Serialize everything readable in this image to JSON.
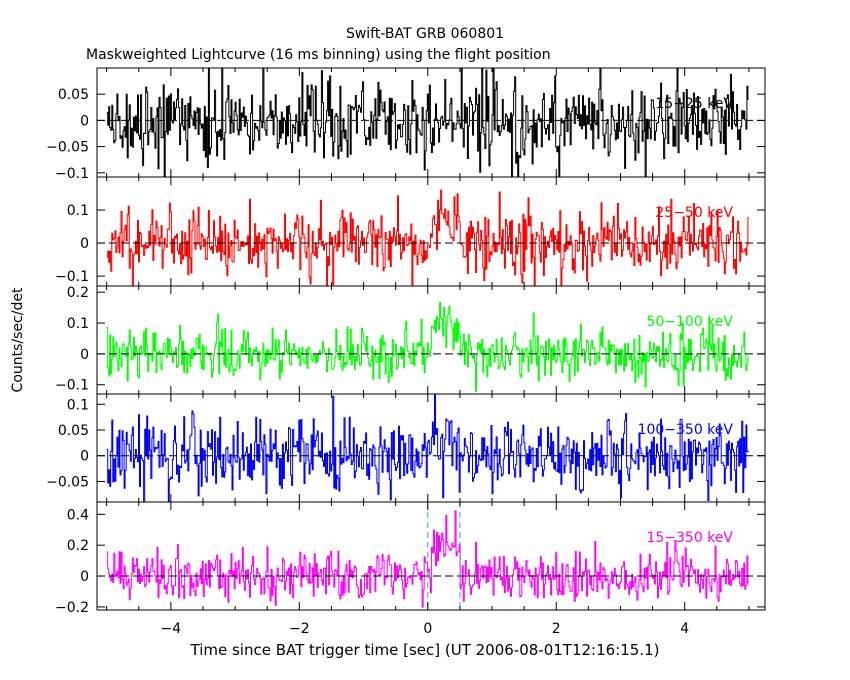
{
  "chart_data": {
    "type": "line",
    "title": "Swift-BAT GRB 060801",
    "subtitle": "Maskweighted Lightcurve (16 ms binning) using the flight position",
    "xlabel": "Time since BAT trigger time [sec] (UT 2006-08-01T12:16:15.1)",
    "ylabel": "Counts/sec/det",
    "xlim": [
      -5.15,
      5.25
    ],
    "x_ticks": [
      -4,
      -2,
      0,
      2,
      4
    ],
    "x_tick_labels": [
      "−4",
      "−2",
      "0",
      "2",
      "4"
    ],
    "bin_width_sec": 0.016,
    "vertical_markers": [
      0.0,
      0.5
    ],
    "panels": [
      {
        "name": "15-25 keV",
        "label": "15−25 keV",
        "color": "#000000",
        "ylim": [
          -0.108,
          0.1
        ],
        "y_ticks": [
          -0.1,
          -0.05,
          0,
          0.05
        ],
        "y_tick_labels": [
          "−0.1",
          "−0.05",
          "0",
          "0.05"
        ],
        "baseline_noise": 0.04,
        "peak": 0.0,
        "peak_time": [
          0.05,
          0.5
        ]
      },
      {
        "name": "25-50 keV",
        "label": "25−50 keV",
        "color": "#ff0000",
        "ylim": [
          -0.13,
          0.2
        ],
        "y_ticks": [
          -0.1,
          0,
          0.1
        ],
        "y_tick_labels": [
          "−0.1",
          "0",
          "0.1"
        ],
        "baseline_noise": 0.05,
        "peak": 0.08,
        "peak_time": [
          0.05,
          0.5
        ]
      },
      {
        "name": "50-100 keV",
        "label": "50−100 keV",
        "color": "#00ff00",
        "ylim": [
          -0.13,
          0.22
        ],
        "y_ticks": [
          -0.1,
          0,
          0.1,
          0.2
        ],
        "y_tick_labels": [
          "−0.1",
          "0",
          "0.1",
          "0.2"
        ],
        "baseline_noise": 0.04,
        "peak": 0.1,
        "peak_time": [
          0.05,
          0.5
        ]
      },
      {
        "name": "100-350 keV",
        "label": "100−350 keV",
        "color": "#0000ff",
        "ylim": [
          -0.09,
          0.12
        ],
        "y_ticks": [
          -0.05,
          0,
          0.05,
          0.1
        ],
        "y_tick_labels": [
          "−0.05",
          "0",
          "0.05",
          "0.1"
        ],
        "baseline_noise": 0.035,
        "peak": 0.04,
        "peak_time": [
          0.05,
          0.5
        ]
      },
      {
        "name": "15-350 keV",
        "label": "15−350 keV",
        "color": "#ff00ff",
        "ylim": [
          -0.22,
          0.48
        ],
        "y_ticks": [
          -0.2,
          0,
          0.2,
          0.4
        ],
        "y_tick_labels": [
          "−0.2",
          "0",
          "0.2",
          "0.4"
        ],
        "baseline_noise": 0.08,
        "peak": 0.25,
        "peak_time": [
          0.05,
          0.5
        ]
      }
    ]
  }
}
